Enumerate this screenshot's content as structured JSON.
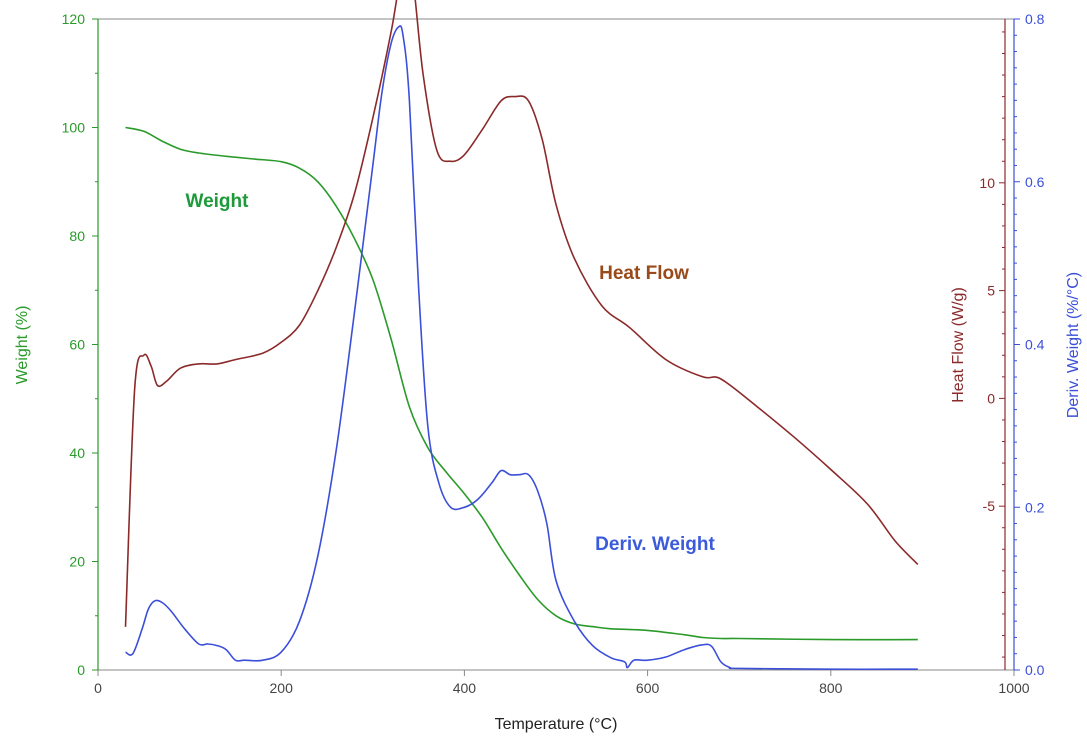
{
  "chart_data": {
    "type": "line",
    "xlabel": "Temperature (°C)",
    "xlim": [
      0,
      1000
    ],
    "x_ticks": [
      0,
      200,
      400,
      600,
      800,
      1000
    ],
    "axes": {
      "weight": {
        "label": "Weight (%)",
        "lim": [
          0,
          120
        ],
        "ticks": [
          0,
          20,
          40,
          60,
          80,
          100,
          120
        ],
        "color": "#2a9a2a"
      },
      "heat_flow": {
        "label": "Heat Flow (W/g)",
        "lim": [
          -12.6,
          17.6
        ],
        "ticks": [
          -5,
          0,
          5,
          10
        ],
        "color": "#8b2a2a"
      },
      "deriv": {
        "label": "Deriv. Weight (%/°C)",
        "lim": [
          0,
          0.8
        ],
        "ticks": [
          0.0,
          0.2,
          0.4,
          0.6,
          0.8
        ],
        "tick_labels": [
          "0.0",
          "0.2",
          "0.4",
          "0.6",
          "0.8"
        ],
        "color": "#3b4fd8"
      }
    },
    "annotations": {
      "weight": "Weight",
      "heat_flow": "Heat Flow",
      "deriv": "Deriv. Weight"
    },
    "series": [
      {
        "key": "weight",
        "axis": "weight",
        "color": "#2a9a2a",
        "x": [
          30,
          50,
          70,
          90,
          110,
          140,
          170,
          200,
          220,
          240,
          260,
          280,
          300,
          320,
          340,
          360,
          380,
          400,
          420,
          440,
          460,
          480,
          500,
          520,
          540,
          560,
          600,
          640,
          660,
          680,
          700,
          800,
          895
        ],
        "y": [
          100.0,
          99.3,
          97.5,
          96.0,
          95.3,
          94.7,
          94.2,
          93.7,
          92.5,
          90.0,
          85.5,
          79.5,
          72.0,
          61.0,
          48.5,
          41.0,
          36.5,
          32.5,
          28.0,
          22.5,
          17.5,
          13.0,
          10.0,
          8.5,
          8.0,
          7.6,
          7.3,
          6.5,
          6.0,
          5.8,
          5.8,
          5.6,
          5.6
        ]
      },
      {
        "key": "heat_flow",
        "axis": "heat_flow",
        "color": "#8b2a2a",
        "x": [
          30,
          40,
          50,
          58,
          65,
          75,
          90,
          110,
          130,
          150,
          180,
          200,
          220,
          240,
          260,
          280,
          300,
          320,
          330,
          338,
          345,
          355,
          370,
          385,
          400,
          420,
          440,
          455,
          470,
          485,
          500,
          520,
          550,
          580,
          620,
          660,
          680,
          720,
          760,
          800,
          840,
          870,
          895
        ],
        "y": [
          -10.6,
          0.4,
          2.0,
          1.5,
          0.6,
          0.8,
          1.4,
          1.6,
          1.6,
          1.8,
          2.1,
          2.6,
          3.4,
          5.0,
          7.0,
          9.5,
          13.0,
          17.0,
          19.5,
          20.5,
          19.0,
          15.0,
          11.5,
          11.0,
          11.3,
          12.5,
          13.8,
          14.0,
          13.8,
          12.0,
          9.0,
          6.5,
          4.3,
          3.3,
          1.8,
          1.0,
          0.9,
          -0.4,
          -1.8,
          -3.3,
          -4.9,
          -6.6,
          -7.7
        ]
      },
      {
        "key": "deriv",
        "axis": "deriv",
        "color": "#3b4fd8",
        "x": [
          30,
          38,
          48,
          55,
          62,
          70,
          80,
          95,
          110,
          120,
          130,
          140,
          150,
          160,
          180,
          200,
          220,
          240,
          260,
          280,
          300,
          310,
          320,
          328,
          333,
          340,
          350,
          360,
          372,
          385,
          400,
          415,
          430,
          440,
          450,
          460,
          470,
          480,
          490,
          500,
          520,
          540,
          560,
          575,
          578,
          585,
          600,
          620,
          640,
          660,
          670,
          680,
          690,
          700,
          800,
          895
        ],
        "y": [
          0.022,
          0.02,
          0.05,
          0.075,
          0.085,
          0.083,
          0.072,
          0.05,
          0.032,
          0.032,
          0.03,
          0.025,
          0.012,
          0.012,
          0.012,
          0.022,
          0.06,
          0.14,
          0.27,
          0.44,
          0.62,
          0.71,
          0.77,
          0.79,
          0.78,
          0.7,
          0.47,
          0.3,
          0.23,
          0.2,
          0.2,
          0.21,
          0.23,
          0.245,
          0.24,
          0.24,
          0.24,
          0.22,
          0.18,
          0.11,
          0.06,
          0.03,
          0.015,
          0.01,
          0.003,
          0.012,
          0.012,
          0.016,
          0.025,
          0.031,
          0.029,
          0.01,
          0.003,
          0.002,
          0.001,
          0.001
        ]
      }
    ]
  }
}
